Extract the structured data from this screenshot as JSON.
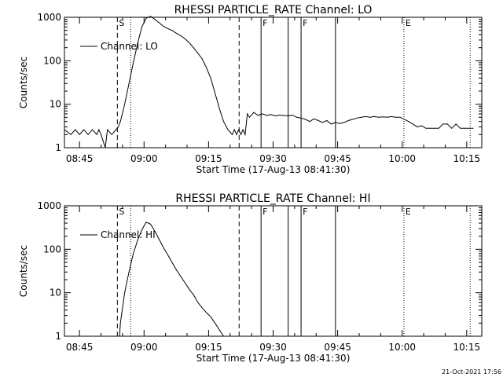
{
  "footer": {
    "timestamp": "21-Oct-2021 17:56"
  },
  "chart_data": [
    {
      "type": "line",
      "title": "RHESSI PARTICLE_RATE Channel: LO",
      "xlabel": "Start Time (17-Aug-13 08:41:30)",
      "ylabel": "Counts/sec",
      "x_unit": "minutes since 08:41:30",
      "xlim": [
        0,
        97
      ],
      "ylim": [
        1,
        1000
      ],
      "yscale": "log",
      "xtick_labels": [
        "08:45",
        "09:00",
        "09:15",
        "09:30",
        "09:45",
        "10:00",
        "10:15"
      ],
      "xtick_positions": [
        3.5,
        18.5,
        33.5,
        48.5,
        63.5,
        78.5,
        93.5
      ],
      "ytick_labels": [
        "1",
        "10",
        "100",
        "1000"
      ],
      "ytick_values": [
        1,
        10,
        100,
        1000
      ],
      "legend": {
        "label": "Channel: LO",
        "placement": "top-left"
      },
      "markers": [
        {
          "label": "S",
          "x": 12.3,
          "style": "dashed"
        },
        {
          "label": "",
          "x": 15.4,
          "style": "dotted"
        },
        {
          "label": "",
          "x": 40.6,
          "style": "dashed"
        },
        {
          "label": "F",
          "x": 45.7,
          "style": "solid"
        },
        {
          "label": "",
          "x": 52.0,
          "style": "solid"
        },
        {
          "label": "F",
          "x": 55.0,
          "style": "solid"
        },
        {
          "label": "",
          "x": 63.0,
          "style": "solid"
        },
        {
          "label": "E",
          "x": 78.9,
          "style": "dotted"
        },
        {
          "label": "",
          "x": 94.3,
          "style": "dotted"
        }
      ],
      "series": [
        {
          "name": "Channel: LO",
          "x": [
            0,
            1.5,
            2.5,
            3.5,
            4.5,
            5.5,
            6.5,
            7.5,
            8.0,
            8.5,
            9.5,
            10.0,
            11.0,
            12.0,
            12.5,
            13.0,
            14.0,
            15.0,
            16.0,
            17.0,
            18.0,
            19.0,
            20.0,
            21.0,
            22.0,
            23.0,
            24.0,
            25.0,
            26.0,
            27.0,
            28.0,
            29.0,
            30.0,
            31.0,
            32.0,
            33.0,
            34.0,
            35.0,
            36.0,
            37.0,
            38.0,
            39.0,
            39.5,
            40.0,
            40.5,
            41.0,
            41.5,
            42.0,
            42.5,
            43.0,
            44.0,
            45.0,
            46.0,
            47.0,
            48.0,
            49.0,
            50.0,
            51.0,
            52.0,
            53.0,
            54.0,
            55.0,
            56.0,
            57.0,
            58.0,
            59.0,
            60.0,
            61.0,
            62.0,
            63.0,
            64.0,
            65.0,
            66.0,
            67.0,
            68.0,
            69.0,
            70.0,
            71.0,
            72.0,
            73.0,
            74.0,
            75.0,
            76.0,
            77.0,
            78.0,
            79.0,
            80.0,
            81.0,
            82.0,
            83.0,
            84.0,
            85.0,
            86.0,
            87.0,
            88.0,
            89.0,
            90.0,
            91.0,
            92.0,
            93.0,
            94.0,
            95.0
          ],
          "values": [
            2.6,
            2.0,
            2.6,
            2.0,
            2.6,
            2.0,
            2.6,
            2.0,
            2.6,
            2.0,
            1.0,
            2.6,
            2.0,
            2.6,
            3.0,
            4.0,
            10,
            30,
            90,
            250,
            600,
            950,
            1050,
            900,
            750,
            620,
            550,
            500,
            430,
            380,
            320,
            260,
            200,
            150,
            110,
            70,
            40,
            18,
            8,
            4,
            2.6,
            2.0,
            2.6,
            2.0,
            2.6,
            2.0,
            2.6,
            2.0,
            6,
            5,
            6.5,
            5.5,
            6,
            5.5,
            5.8,
            5.4,
            5.6,
            5.5,
            5.4,
            5.6,
            5.0,
            4.8,
            4.5,
            4.0,
            4.6,
            4.2,
            3.8,
            4.2,
            3.5,
            3.8,
            3.6,
            3.8,
            4.2,
            4.5,
            4.8,
            5.0,
            5.2,
            5.0,
            5.2,
            5.0,
            5.1,
            5.0,
            5.2,
            5.0,
            5.0,
            4.5,
            4.0,
            3.5,
            3.0,
            3.2,
            2.8,
            2.8,
            2.8,
            2.8,
            3.5,
            3.5,
            2.8,
            3.5,
            2.8,
            2.8,
            2.8,
            2.8
          ]
        }
      ]
    },
    {
      "type": "line",
      "title": "RHESSI PARTICLE_RATE Channel: HI",
      "xlabel": "Start Time (17-Aug-13 08:41:30)",
      "ylabel": "Counts/sec",
      "x_unit": "minutes since 08:41:30",
      "xlim": [
        0,
        97
      ],
      "ylim": [
        1,
        1000
      ],
      "yscale": "log",
      "xtick_labels": [
        "08:45",
        "09:00",
        "09:15",
        "09:30",
        "09:45",
        "10:00",
        "10:15"
      ],
      "xtick_positions": [
        3.5,
        18.5,
        33.5,
        48.5,
        63.5,
        78.5,
        93.5
      ],
      "ytick_labels": [
        "1",
        "10",
        "100",
        "1000"
      ],
      "ytick_values": [
        1,
        10,
        100,
        1000
      ],
      "legend": {
        "label": "Channel: HI",
        "placement": "top-left"
      },
      "markers": [
        {
          "label": "S",
          "x": 12.3,
          "style": "dashed"
        },
        {
          "label": "",
          "x": 15.4,
          "style": "dotted"
        },
        {
          "label": "",
          "x": 40.6,
          "style": "dashed"
        },
        {
          "label": "F",
          "x": 45.7,
          "style": "solid"
        },
        {
          "label": "",
          "x": 52.0,
          "style": "solid"
        },
        {
          "label": "F",
          "x": 55.0,
          "style": "solid"
        },
        {
          "label": "",
          "x": 63.0,
          "style": "solid"
        },
        {
          "label": "E",
          "x": 78.9,
          "style": "dotted"
        },
        {
          "label": "",
          "x": 94.3,
          "style": "dotted"
        }
      ],
      "series": [
        {
          "name": "Channel: HI",
          "x": [
            12.8,
            13.0,
            14.0,
            15.0,
            16.0,
            17.0,
            18.0,
            19.0,
            20.0,
            21.0,
            22.0,
            23.0,
            24.0,
            25.0,
            26.0,
            27.0,
            28.0,
            29.0,
            30.0,
            31.0,
            32.0,
            33.0,
            34.0,
            35.0,
            36.0,
            37.0
          ],
          "values": [
            1.0,
            2.0,
            10,
            30,
            80,
            160,
            280,
            420,
            380,
            260,
            170,
            110,
            75,
            50,
            34,
            24,
            17,
            12,
            9,
            6,
            4.5,
            3.5,
            2.8,
            2.0,
            1.4,
            1.0
          ]
        }
      ]
    }
  ]
}
